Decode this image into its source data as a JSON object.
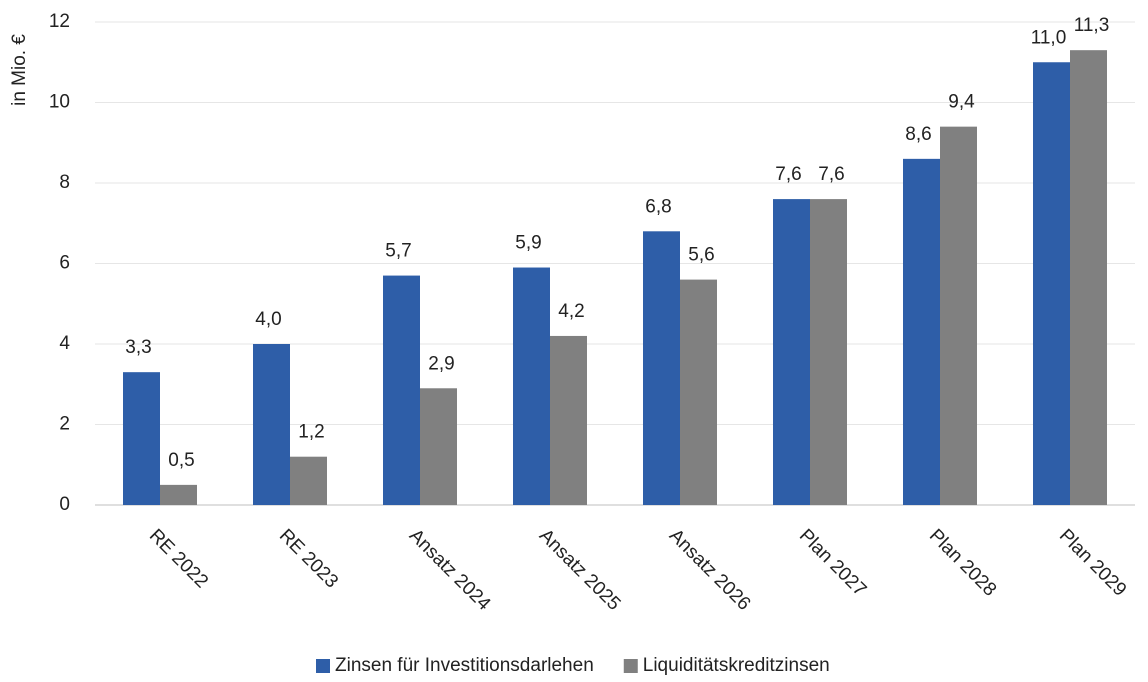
{
  "chart_data": {
    "type": "bar",
    "y_label": "in Mio. €",
    "categories": [
      "RE 2022",
      "RE 2023",
      "Ansatz 2024",
      "Ansatz 2025",
      "Ansatz 2026",
      "Plan 2027",
      "Plan 2028",
      "Plan 2029"
    ],
    "series": [
      {
        "name": "Zinsen für Investitionsdarlehen",
        "color": "#2e5ea8",
        "values": [
          3.3,
          4.0,
          5.7,
          5.9,
          6.8,
          7.6,
          8.6,
          11.0
        ],
        "value_labels": [
          "3,3",
          "4,0",
          "5,7",
          "5,9",
          "6,8",
          "7,6",
          "8,6",
          "11,0"
        ]
      },
      {
        "name": "Liquiditätskreditzinsen",
        "color": "#808080",
        "values": [
          0.5,
          1.2,
          2.9,
          4.2,
          5.6,
          7.6,
          9.4,
          11.3
        ],
        "value_labels": [
          "0,5",
          "1,2",
          "2,9",
          "4,2",
          "5,6",
          "7,6",
          "9,4",
          "11,3"
        ]
      }
    ],
    "ylim": [
      0,
      12
    ],
    "yticks": [
      0,
      2,
      4,
      6,
      8,
      10,
      12
    ],
    "grid": true,
    "legend": "bottom"
  }
}
